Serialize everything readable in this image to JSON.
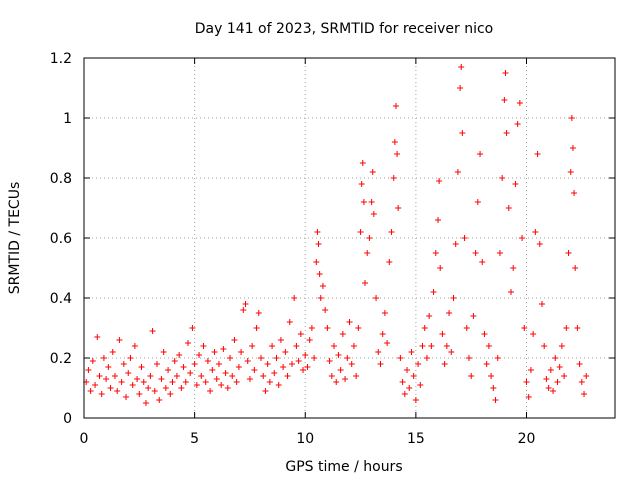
{
  "chart_data": {
    "type": "scatter",
    "title": "Day 141 of 2023, SRMTID for receiver nico",
    "xlabel": "GPS time / hours",
    "ylabel": "SRMTID / TECUs",
    "xlim": [
      0,
      24
    ],
    "ylim": [
      0,
      1.2
    ],
    "xticks": [
      0,
      5,
      10,
      15,
      20
    ],
    "xtick_labels": [
      "0",
      "5",
      "10",
      "15",
      "20"
    ],
    "yticks": [
      0,
      0.2,
      0.4,
      0.6,
      0.8,
      1,
      1.2
    ],
    "ytick_labels": [
      "0",
      "0.2",
      "0.4",
      "0.6",
      "0.8",
      "1",
      "1.2"
    ],
    "grid": true,
    "marker": "+",
    "color": "#ff0000",
    "series": [
      {
        "name": "SRMTID",
        "points": [
          [
            0.1,
            0.12
          ],
          [
            0.2,
            0.16
          ],
          [
            0.3,
            0.09
          ],
          [
            0.4,
            0.19
          ],
          [
            0.5,
            0.11
          ],
          [
            0.6,
            0.27
          ],
          [
            0.7,
            0.14
          ],
          [
            0.8,
            0.08
          ],
          [
            0.9,
            0.2
          ],
          [
            1.0,
            0.13
          ],
          [
            1.1,
            0.17
          ],
          [
            1.2,
            0.1
          ],
          [
            1.3,
            0.22
          ],
          [
            1.4,
            0.14
          ],
          [
            1.5,
            0.09
          ],
          [
            1.6,
            0.26
          ],
          [
            1.7,
            0.12
          ],
          [
            1.8,
            0.18
          ],
          [
            1.9,
            0.07
          ],
          [
            2.0,
            0.15
          ],
          [
            2.1,
            0.2
          ],
          [
            2.2,
            0.11
          ],
          [
            2.3,
            0.24
          ],
          [
            2.4,
            0.13
          ],
          [
            2.5,
            0.08
          ],
          [
            2.6,
            0.17
          ],
          [
            2.7,
            0.12
          ],
          [
            2.8,
            0.05
          ],
          [
            2.9,
            0.1
          ],
          [
            3.0,
            0.14
          ],
          [
            3.1,
            0.29
          ],
          [
            3.2,
            0.09
          ],
          [
            3.3,
            0.18
          ],
          [
            3.4,
            0.06
          ],
          [
            3.5,
            0.13
          ],
          [
            3.6,
            0.22
          ],
          [
            3.7,
            0.1
          ],
          [
            3.8,
            0.16
          ],
          [
            3.9,
            0.08
          ],
          [
            4.0,
            0.12
          ],
          [
            4.1,
            0.19
          ],
          [
            4.2,
            0.14
          ],
          [
            4.3,
            0.21
          ],
          [
            4.4,
            0.1
          ],
          [
            4.5,
            0.17
          ],
          [
            4.6,
            0.12
          ],
          [
            4.7,
            0.25
          ],
          [
            4.8,
            0.15
          ],
          [
            4.9,
            0.3
          ],
          [
            5.0,
            0.18
          ],
          [
            5.1,
            0.11
          ],
          [
            5.2,
            0.21
          ],
          [
            5.3,
            0.14
          ],
          [
            5.4,
            0.24
          ],
          [
            5.5,
            0.12
          ],
          [
            5.6,
            0.19
          ],
          [
            5.7,
            0.09
          ],
          [
            5.8,
            0.16
          ],
          [
            5.9,
            0.22
          ],
          [
            6.0,
            0.13
          ],
          [
            6.1,
            0.18
          ],
          [
            6.2,
            0.11
          ],
          [
            6.3,
            0.23
          ],
          [
            6.4,
            0.15
          ],
          [
            6.5,
            0.1
          ],
          [
            6.6,
            0.2
          ],
          [
            6.7,
            0.14
          ],
          [
            6.8,
            0.26
          ],
          [
            6.9,
            0.12
          ],
          [
            7.0,
            0.17
          ],
          [
            7.1,
            0.22
          ],
          [
            7.2,
            0.36
          ],
          [
            7.3,
            0.38
          ],
          [
            7.4,
            0.19
          ],
          [
            7.5,
            0.13
          ],
          [
            7.6,
            0.24
          ],
          [
            7.7,
            0.16
          ],
          [
            7.8,
            0.3
          ],
          [
            7.9,
            0.35
          ],
          [
            8.0,
            0.2
          ],
          [
            8.1,
            0.14
          ],
          [
            8.2,
            0.09
          ],
          [
            8.3,
            0.18
          ],
          [
            8.4,
            0.12
          ],
          [
            8.5,
            0.24
          ],
          [
            8.6,
            0.15
          ],
          [
            8.7,
            0.2
          ],
          [
            8.8,
            0.11
          ],
          [
            8.9,
            0.26
          ],
          [
            9.0,
            0.17
          ],
          [
            9.1,
            0.22
          ],
          [
            9.2,
            0.14
          ],
          [
            9.3,
            0.32
          ],
          [
            9.4,
            0.18
          ],
          [
            9.5,
            0.4
          ],
          [
            9.6,
            0.24
          ],
          [
            9.7,
            0.19
          ],
          [
            9.8,
            0.28
          ],
          [
            9.9,
            0.16
          ],
          [
            10.0,
            0.21
          ],
          [
            10.1,
            0.17
          ],
          [
            10.2,
            0.26
          ],
          [
            10.3,
            0.3
          ],
          [
            10.4,
            0.2
          ],
          [
            10.5,
            0.52
          ],
          [
            10.55,
            0.62
          ],
          [
            10.6,
            0.58
          ],
          [
            10.65,
            0.48
          ],
          [
            10.7,
            0.4
          ],
          [
            10.8,
            0.44
          ],
          [
            10.9,
            0.36
          ],
          [
            11.0,
            0.3
          ],
          [
            11.1,
            0.19
          ],
          [
            11.2,
            0.14
          ],
          [
            11.3,
            0.24
          ],
          [
            11.4,
            0.12
          ],
          [
            11.5,
            0.21
          ],
          [
            11.6,
            0.16
          ],
          [
            11.7,
            0.28
          ],
          [
            11.8,
            0.13
          ],
          [
            11.9,
            0.2
          ],
          [
            12.0,
            0.32
          ],
          [
            12.1,
            0.18
          ],
          [
            12.2,
            0.24
          ],
          [
            12.3,
            0.14
          ],
          [
            12.4,
            0.3
          ],
          [
            12.5,
            0.62
          ],
          [
            12.55,
            0.78
          ],
          [
            12.6,
            0.85
          ],
          [
            12.65,
            0.72
          ],
          [
            12.7,
            0.45
          ],
          [
            12.8,
            0.55
          ],
          [
            12.9,
            0.6
          ],
          [
            13.0,
            0.72
          ],
          [
            13.05,
            0.82
          ],
          [
            13.1,
            0.68
          ],
          [
            13.2,
            0.4
          ],
          [
            13.3,
            0.22
          ],
          [
            13.4,
            0.18
          ],
          [
            13.5,
            0.28
          ],
          [
            13.6,
            0.35
          ],
          [
            13.7,
            0.25
          ],
          [
            13.8,
            0.52
          ],
          [
            13.9,
            0.62
          ],
          [
            14.0,
            0.8
          ],
          [
            14.05,
            0.92
          ],
          [
            14.1,
            1.04
          ],
          [
            14.15,
            0.88
          ],
          [
            14.2,
            0.7
          ],
          [
            14.3,
            0.2
          ],
          [
            14.4,
            0.12
          ],
          [
            14.5,
            0.08
          ],
          [
            14.6,
            0.16
          ],
          [
            14.7,
            0.1
          ],
          [
            14.8,
            0.22
          ],
          [
            14.9,
            0.14
          ],
          [
            15.0,
            0.06
          ],
          [
            15.1,
            0.18
          ],
          [
            15.2,
            0.11
          ],
          [
            15.3,
            0.24
          ],
          [
            15.4,
            0.3
          ],
          [
            15.5,
            0.2
          ],
          [
            15.6,
            0.34
          ],
          [
            15.7,
            0.24
          ],
          [
            15.8,
            0.42
          ],
          [
            15.9,
            0.55
          ],
          [
            16.0,
            0.66
          ],
          [
            16.05,
            0.79
          ],
          [
            16.1,
            0.5
          ],
          [
            16.2,
            0.28
          ],
          [
            16.3,
            0.18
          ],
          [
            16.4,
            0.24
          ],
          [
            16.5,
            0.35
          ],
          [
            16.6,
            0.22
          ],
          [
            16.7,
            0.4
          ],
          [
            16.8,
            0.58
          ],
          [
            16.9,
            0.82
          ],
          [
            17.0,
            1.1
          ],
          [
            17.05,
            1.17
          ],
          [
            17.1,
            0.95
          ],
          [
            17.2,
            0.6
          ],
          [
            17.3,
            0.3
          ],
          [
            17.4,
            0.2
          ],
          [
            17.5,
            0.14
          ],
          [
            17.6,
            0.34
          ],
          [
            17.7,
            0.55
          ],
          [
            17.8,
            0.72
          ],
          [
            17.9,
            0.88
          ],
          [
            18.0,
            0.52
          ],
          [
            18.1,
            0.28
          ],
          [
            18.2,
            0.18
          ],
          [
            18.3,
            0.24
          ],
          [
            18.4,
            0.14
          ],
          [
            18.5,
            0.1
          ],
          [
            18.6,
            0.06
          ],
          [
            18.7,
            0.2
          ],
          [
            18.8,
            0.55
          ],
          [
            18.9,
            0.8
          ],
          [
            19.0,
            1.06
          ],
          [
            19.05,
            1.15
          ],
          [
            19.1,
            0.95
          ],
          [
            19.2,
            0.7
          ],
          [
            19.3,
            0.42
          ],
          [
            19.4,
            0.5
          ],
          [
            19.5,
            0.78
          ],
          [
            19.6,
            0.98
          ],
          [
            19.7,
            1.05
          ],
          [
            19.8,
            0.6
          ],
          [
            19.9,
            0.3
          ],
          [
            20.0,
            0.12
          ],
          [
            20.1,
            0.07
          ],
          [
            20.2,
            0.16
          ],
          [
            20.3,
            0.28
          ],
          [
            20.4,
            0.62
          ],
          [
            20.5,
            0.88
          ],
          [
            20.6,
            0.58
          ],
          [
            20.7,
            0.38
          ],
          [
            20.8,
            0.24
          ],
          [
            20.9,
            0.13
          ],
          [
            21.0,
            0.1
          ],
          [
            21.1,
            0.16
          ],
          [
            21.2,
            0.09
          ],
          [
            21.3,
            0.2
          ],
          [
            21.4,
            0.12
          ],
          [
            21.5,
            0.17
          ],
          [
            21.6,
            0.24
          ],
          [
            21.7,
            0.14
          ],
          [
            21.8,
            0.3
          ],
          [
            21.9,
            0.55
          ],
          [
            22.0,
            0.82
          ],
          [
            22.05,
            1.0
          ],
          [
            22.1,
            0.9
          ],
          [
            22.15,
            0.75
          ],
          [
            22.2,
            0.5
          ],
          [
            22.3,
            0.3
          ],
          [
            22.4,
            0.18
          ],
          [
            22.5,
            0.12
          ],
          [
            22.6,
            0.08
          ],
          [
            22.7,
            0.14
          ]
        ]
      }
    ]
  }
}
